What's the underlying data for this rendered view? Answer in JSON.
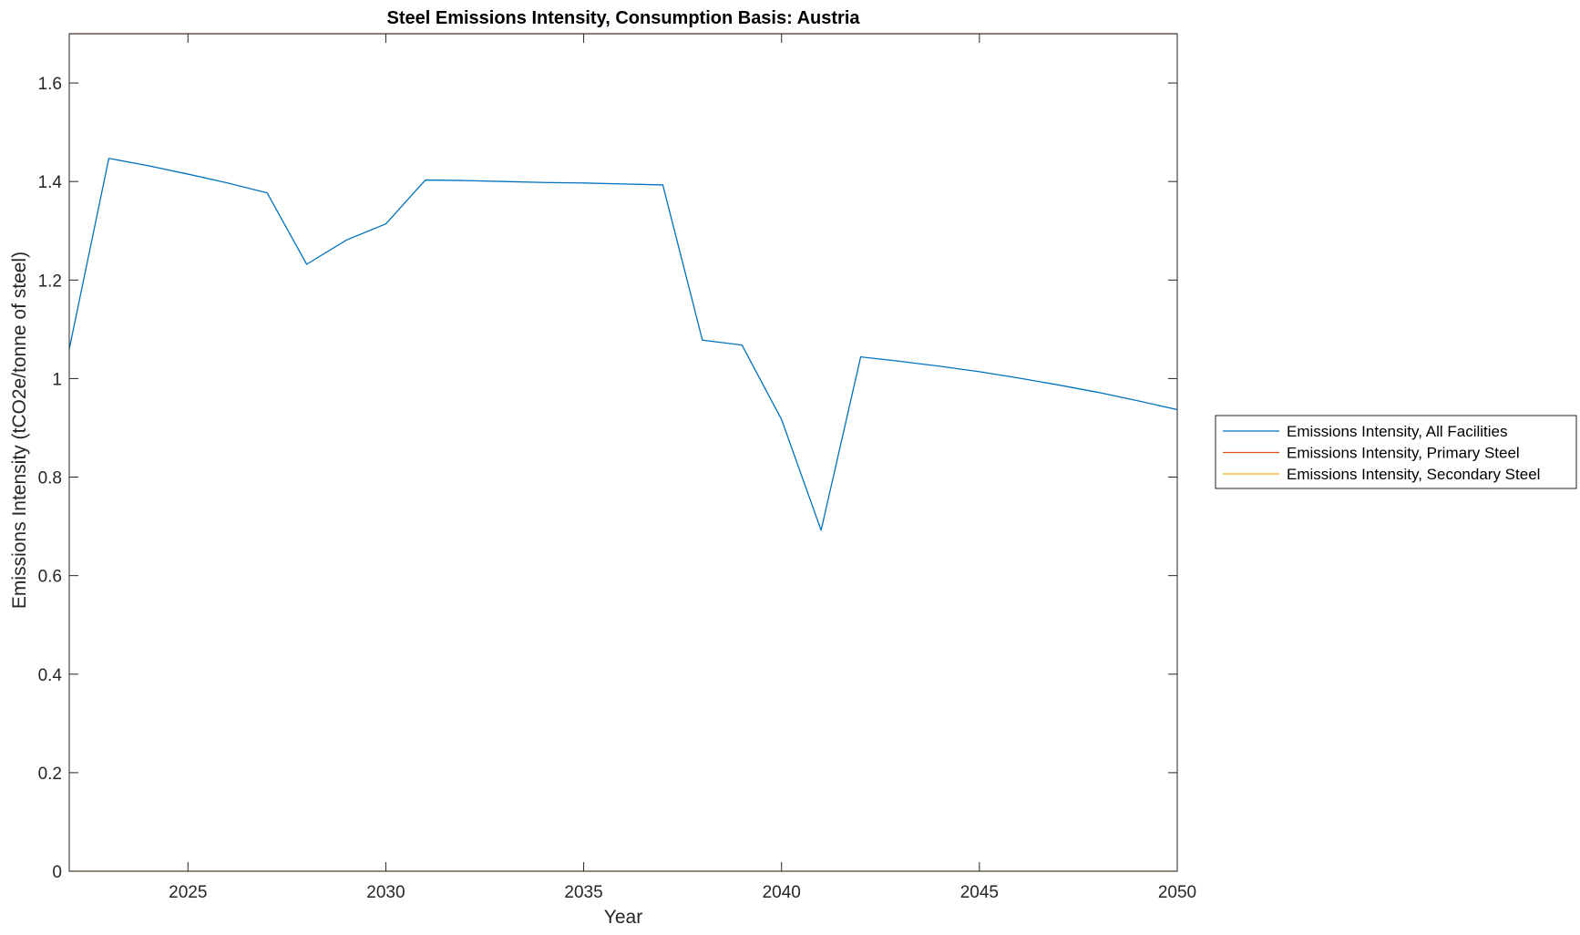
{
  "chart_data": {
    "type": "line",
    "title": "Steel Emissions Intensity, Consumption Basis: Austria",
    "xlabel": "Year",
    "ylabel": "Emissions Intensity (tCO2e/tonne of steel)",
    "xlim": [
      2022,
      2050
    ],
    "ylim": [
      0,
      1.7
    ],
    "xticks": [
      2025,
      2030,
      2035,
      2040,
      2045,
      2050
    ],
    "yticks": [
      0,
      0.2,
      0.4,
      0.6,
      0.8,
      1,
      1.2,
      1.4,
      1.6
    ],
    "ytick_labels": [
      "0",
      "0.2",
      "0.4",
      "0.6",
      "0.8",
      "1",
      "1.2",
      "1.4",
      "1.6"
    ],
    "grid": false,
    "legend_position": "outside-right",
    "x": [
      2022,
      2023,
      2024,
      2025,
      2026,
      2027,
      2028,
      2029,
      2030,
      2031,
      2032,
      2033,
      2034,
      2035,
      2036,
      2037,
      2038,
      2039,
      2040,
      2041,
      2042,
      2043,
      2044,
      2045,
      2046,
      2047,
      2048,
      2049,
      2050
    ],
    "series": [
      {
        "name": "Emissions Intensity, All Facilities",
        "color": "#0072BD",
        "values": [
          1.06,
          1.447,
          1.432,
          1.415,
          1.397,
          1.377,
          1.232,
          1.281,
          1.314,
          1.403,
          1.402,
          1.4,
          1.398,
          1.397,
          1.395,
          1.393,
          1.078,
          1.068,
          0.917,
          0.692,
          1.044,
          1.035,
          1.025,
          1.014,
          1.001,
          0.987,
          0.972,
          0.955,
          0.937
        ]
      },
      {
        "name": "Emissions Intensity, Primary Steel",
        "color": "#D95319",
        "values": [
          1.7,
          1.7,
          1.7,
          1.7,
          1.7,
          1.7,
          1.7,
          1.7,
          1.7,
          1.7,
          1.7,
          1.7,
          1.7,
          1.7,
          1.7,
          1.7,
          1.7,
          1.7,
          1.7,
          1.7,
          1.7,
          1.7,
          1.7,
          1.7,
          1.7,
          1.7,
          1.7,
          1.7,
          1.7
        ]
      },
      {
        "name": "Emissions Intensity, Secondary Steel",
        "color": "#EDB120",
        "values": [
          0,
          0,
          0,
          0,
          0,
          0,
          0,
          0,
          0,
          0,
          0,
          0,
          0,
          0,
          0,
          0,
          0,
          0,
          0,
          0,
          0,
          0,
          0,
          0,
          0,
          0,
          0,
          0,
          0
        ]
      }
    ]
  }
}
